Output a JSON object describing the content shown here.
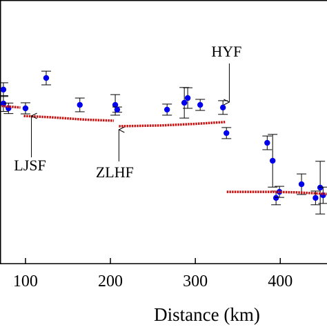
{
  "chart_data": {
    "type": "scatter",
    "x_label": "Distance (km)",
    "xlim": [
      70,
      455
    ],
    "ylim": [
      0,
      100
    ],
    "xticks": [
      100,
      200,
      300,
      400
    ],
    "series": [
      {
        "color": "#0000ee",
        "x": [
          74,
          74,
          80,
          100,
          124.4,
          164,
          205.7,
          208,
          266.7,
          287,
          291,
          305.7,
          332.5,
          336.6,
          384.6,
          391,
          395,
          399,
          425,
          441.5,
          447,
          450.4
        ],
        "values": [
          66,
          60.7,
          58.9,
          58.9,
          70.4,
          60.2,
          60.2,
          58.4,
          58.4,
          61,
          62.8,
          60.2,
          59.2,
          49.5,
          45.8,
          39,
          24.9,
          27.2,
          30.1,
          24.9,
          28.8,
          25.9
        ],
        "errors": [
          2.6,
          3,
          2,
          2.1,
          2.6,
          2.6,
          3.9,
          1,
          2.1,
          5.8,
          3.9,
          2.1,
          2.6,
          2.1,
          2.6,
          10,
          2.6,
          2.1,
          3.9,
          2.6,
          10,
          3.1
        ]
      },
      {
        "type": "line",
        "color": "#cc1111",
        "x": [
          72,
          94,
          96,
          98,
          130,
          170,
          204,
          207,
          210,
          260,
          300,
          335,
          336,
          337,
          390,
          420,
          455
        ],
        "values": [
          59.8,
          59.2,
          null,
          56,
          55.5,
          54.6,
          54.2,
          null,
          52.1,
          52.4,
          53,
          53.7,
          null,
          27.2,
          27.2,
          27,
          26.4
        ]
      }
    ],
    "annotations": [
      {
        "text": "LJSF",
        "x": 107
      },
      {
        "text": "ZLHF",
        "x": 210
      },
      {
        "text": "HYF",
        "x": 340
      }
    ]
  }
}
